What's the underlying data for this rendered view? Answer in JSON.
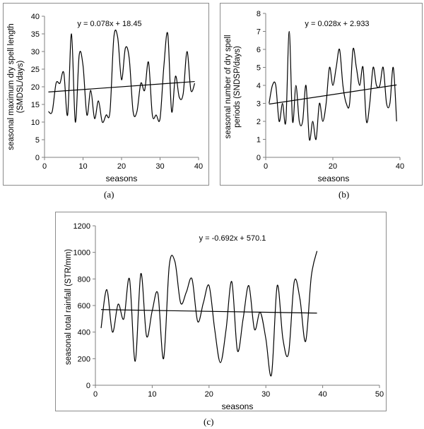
{
  "chart_data": [
    {
      "id": "a",
      "type": "line",
      "caption": "(a)",
      "equation": "y = 0.078x + 18.45",
      "xlabel": "seasons",
      "ylabel_lines": [
        "seasonal maximum dry spell length",
        "(SMDSL/days)"
      ],
      "xlim": [
        0,
        40
      ],
      "ylim": [
        0,
        40
      ],
      "xticks": [
        0,
        10,
        20,
        30,
        40
      ],
      "yticks": [
        0,
        5,
        10,
        15,
        20,
        25,
        30,
        35,
        40
      ],
      "x": [
        1,
        2,
        3,
        4,
        5,
        6,
        7,
        8,
        9,
        10,
        11,
        12,
        13,
        14,
        15,
        16,
        17,
        18,
        19,
        20,
        21,
        22,
        23,
        24,
        25,
        26,
        27,
        28,
        29,
        30,
        31,
        32,
        33,
        34,
        35,
        36,
        37,
        38,
        39
      ],
      "values": [
        13,
        13,
        21,
        21,
        24,
        12,
        35,
        10,
        29,
        26,
        12,
        19,
        11,
        16,
        10,
        12,
        13,
        34,
        34,
        22,
        31,
        28,
        13,
        13,
        21,
        19,
        27,
        12,
        12,
        11,
        26,
        35,
        13,
        23,
        17,
        18,
        30,
        19,
        21
      ],
      "trend": {
        "slope": 0.078,
        "intercept": 18.45,
        "x_range": [
          1,
          39
        ]
      }
    },
    {
      "id": "b",
      "type": "line",
      "caption": "(b)",
      "equation": "y = 0.028x + 2.933",
      "xlabel": "seasons",
      "ylabel_lines": [
        "seasonal number of dry spell",
        "periods (SNDSP/days)"
      ],
      "xlim": [
        0,
        40
      ],
      "ylim": [
        0,
        8
      ],
      "xticks": [
        0,
        20,
        40
      ],
      "yticks": [
        0,
        1,
        2,
        3,
        4,
        5,
        6,
        7,
        8
      ],
      "x": [
        1,
        2,
        3,
        4,
        5,
        6,
        7,
        8,
        9,
        10,
        11,
        12,
        13,
        14,
        15,
        16,
        17,
        18,
        19,
        20,
        21,
        22,
        23,
        24,
        25,
        26,
        27,
        28,
        29,
        30,
        31,
        32,
        33,
        34,
        35,
        36,
        37,
        38,
        39
      ],
      "values": [
        3,
        4,
        4,
        2,
        3,
        2,
        7,
        2,
        4,
        2,
        2,
        4,
        1,
        2,
        1,
        3,
        2,
        3,
        5,
        4,
        5,
        6,
        4,
        3,
        3,
        6,
        5,
        4,
        5,
        2,
        3,
        5,
        4,
        4,
        5,
        3,
        3,
        5,
        2
      ],
      "trend": {
        "slope": 0.028,
        "intercept": 2.933,
        "x_range": [
          1,
          39
        ]
      }
    },
    {
      "id": "c",
      "type": "line",
      "caption": "(c)",
      "equation": "y = -0.692x + 570.1",
      "xlabel": "seasons",
      "ylabel_lines": [
        "seasonal total rainfall (STR/mm)"
      ],
      "xlim": [
        0,
        50
      ],
      "ylim": [
        0,
        1200
      ],
      "xticks": [
        0,
        10,
        20,
        30,
        40,
        50
      ],
      "yticks": [
        0,
        200,
        400,
        600,
        800,
        1000,
        1200
      ],
      "x": [
        1,
        2,
        3,
        4,
        5,
        6,
        7,
        8,
        9,
        10,
        11,
        12,
        13,
        14,
        15,
        16,
        17,
        18,
        19,
        20,
        21,
        22,
        23,
        24,
        25,
        26,
        27,
        28,
        29,
        30,
        31,
        32,
        33,
        34,
        35,
        36,
        37,
        38,
        39
      ],
      "values": [
        430,
        720,
        400,
        610,
        500,
        800,
        180,
        840,
        370,
        560,
        690,
        200,
        900,
        930,
        620,
        700,
        800,
        480,
        620,
        750,
        420,
        170,
        420,
        780,
        260,
        500,
        750,
        420,
        550,
        350,
        80,
        750,
        350,
        240,
        780,
        650,
        330,
        820,
        1010
      ],
      "trend": {
        "slope": -0.692,
        "intercept": 570.1,
        "x_range": [
          1,
          39
        ]
      }
    }
  ]
}
